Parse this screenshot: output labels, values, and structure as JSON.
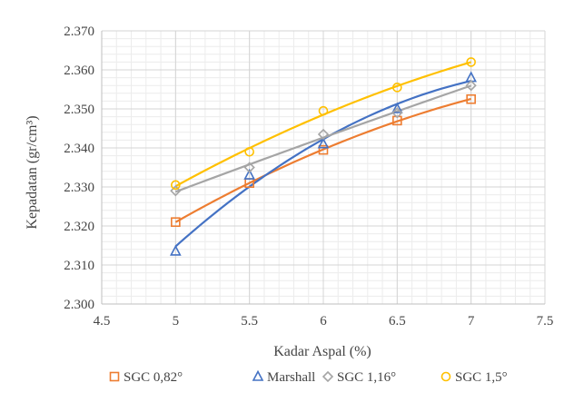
{
  "chart_data": {
    "type": "scatter",
    "title": "",
    "xlabel": "Kadar Aspal (%)",
    "ylabel": "Kepadatan (gr/cm³)",
    "xlim": [
      4.5,
      7.5
    ],
    "ylim": [
      2.3,
      2.37
    ],
    "x_ticks": [
      4.5,
      5,
      5.5,
      6,
      6.5,
      7,
      7.5
    ],
    "x_tick_labels": [
      "4.5",
      "5",
      "5.5",
      "6",
      "6.5",
      "7",
      "7.5"
    ],
    "y_ticks": [
      2.3,
      2.31,
      2.32,
      2.33,
      2.34,
      2.35,
      2.36,
      2.37
    ],
    "y_tick_labels": [
      "2.300",
      "2.310",
      "2.320",
      "2.330",
      "2.340",
      "2.350",
      "2.360",
      "2.370"
    ],
    "grid": true,
    "legend_position": "bottom",
    "trendline": "polynomial order 2",
    "x": [
      5,
      5.5,
      6,
      6.5,
      7
    ],
    "series": [
      {
        "name": "SGC 0,82°",
        "marker": "square",
        "color": "#ED7D31",
        "values": [
          2.321,
          2.331,
          2.3395,
          2.347,
          2.3525
        ]
      },
      {
        "name": "Marshall",
        "marker": "triangle",
        "color": "#4472C4",
        "values": [
          2.3135,
          2.333,
          2.341,
          2.35,
          2.358
        ]
      },
      {
        "name": "SGC 1,16°",
        "marker": "diamond",
        "color": "#A5A5A5",
        "values": [
          2.329,
          2.335,
          2.3435,
          2.349,
          2.356
        ]
      },
      {
        "name": "SGC 1,5°",
        "marker": "circle",
        "color": "#FFC000",
        "values": [
          2.3305,
          2.339,
          2.3495,
          2.3555,
          2.362
        ]
      }
    ]
  }
}
